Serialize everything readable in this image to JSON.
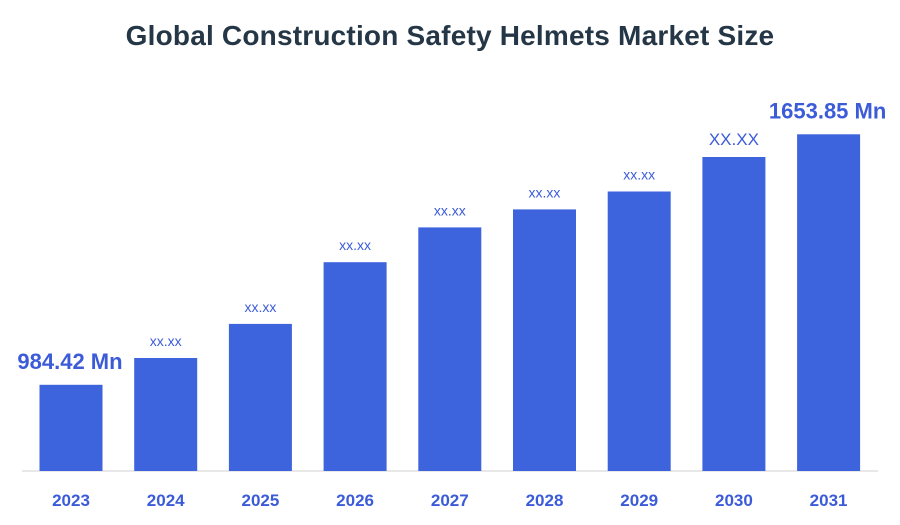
{
  "chart_data": {
    "type": "bar",
    "title": "Global Construction Safety Helmets Market Size",
    "xlabel": "",
    "ylabel": "",
    "categories": [
      "2023",
      "2024",
      "2025",
      "2026",
      "2027",
      "2028",
      "2029",
      "2030",
      "2031"
    ],
    "values": [
      984.42,
      1056,
      1147,
      1312,
      1405,
      1453,
      1501,
      1593,
      1653.85
    ],
    "data_labels": [
      "984.42 Mn",
      "xx.xx",
      "xx.xx",
      "xx.xx",
      "xx.xx",
      "xx.xx",
      "xx.xx",
      "XX.XX",
      "1653.85 Mn"
    ],
    "ylim": [
      754,
      1700
    ],
    "grid": false,
    "legend": "none",
    "bar_color": "#3d63dd",
    "label_color": "#3b5bd9",
    "title_color": "#253746"
  }
}
